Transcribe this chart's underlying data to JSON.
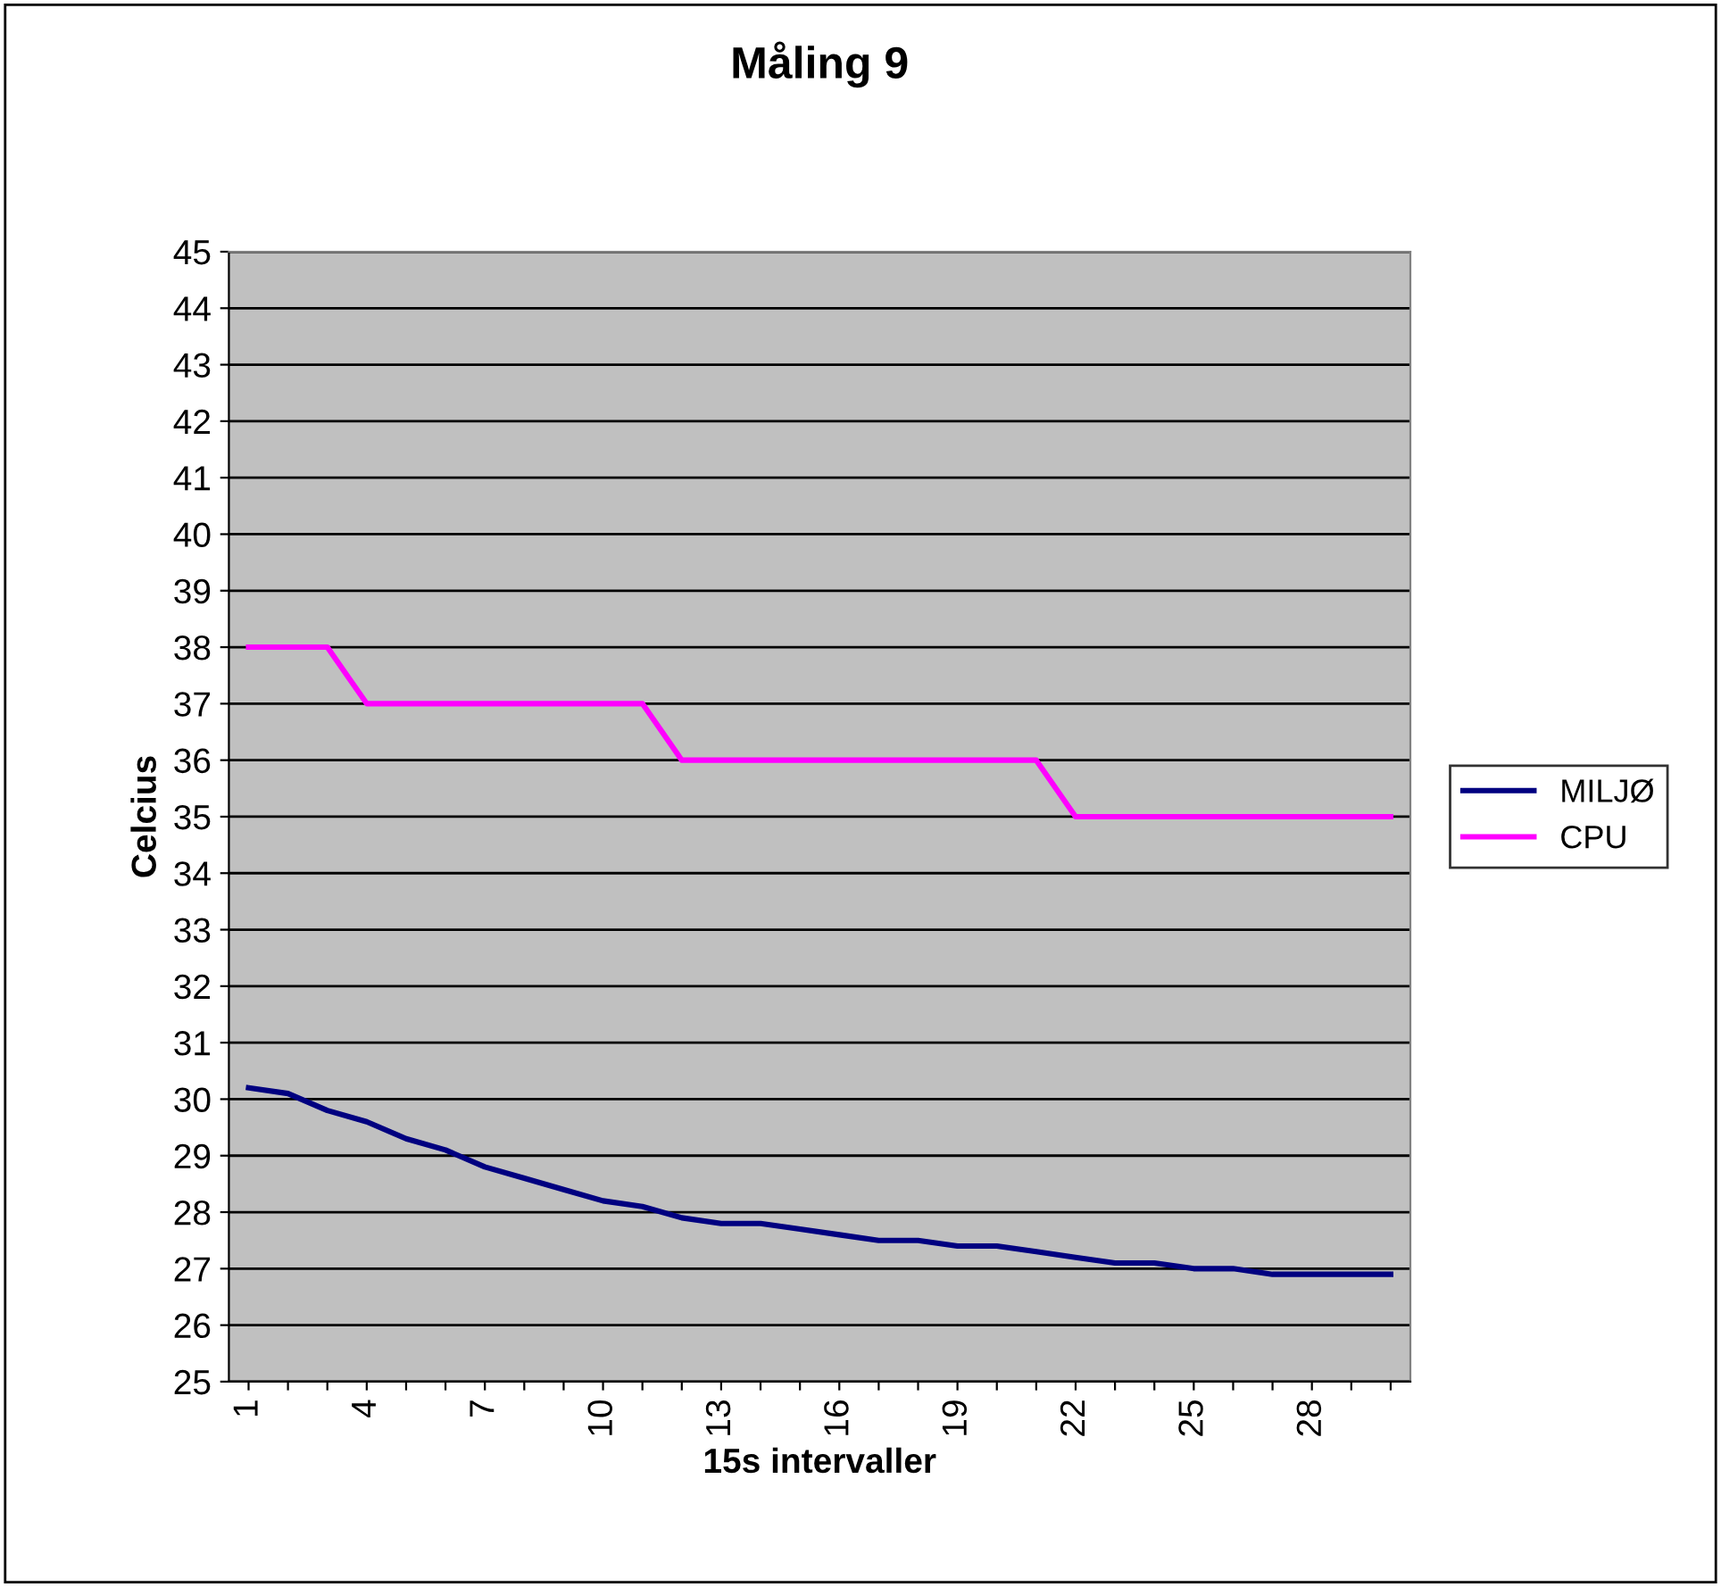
{
  "chart_data": {
    "type": "line",
    "title": "Måling 9",
    "xlabel": "15s intervaller",
    "ylabel": "Celcius",
    "categories": [
      "1",
      null,
      null,
      "4",
      null,
      null,
      "7",
      null,
      null,
      "10",
      null,
      null,
      "13",
      null,
      null,
      "16",
      null,
      null,
      "19",
      null,
      null,
      "22",
      null,
      null,
      "25",
      null,
      null,
      "28",
      null,
      null
    ],
    "series": [
      {
        "name": "MILJØ",
        "color": "#000080",
        "values": [
          30.2,
          30.1,
          29.8,
          29.6,
          29.3,
          29.1,
          28.8,
          28.6,
          28.4,
          28.2,
          28.1,
          27.9,
          27.8,
          27.8,
          27.7,
          27.6,
          27.5,
          27.5,
          27.4,
          27.4,
          27.3,
          27.2,
          27.1,
          27.1,
          27.0,
          27.0,
          26.9,
          26.9,
          26.9,
          26.9
        ]
      },
      {
        "name": "CPU",
        "color": "#ff00ff",
        "values": [
          38,
          38,
          38,
          37,
          37,
          37,
          37,
          37,
          37,
          37,
          37,
          36,
          36,
          36,
          36,
          36,
          36,
          36,
          36,
          36,
          36,
          35,
          35,
          35,
          35,
          35,
          35,
          35,
          35,
          35
        ]
      }
    ],
    "ylim": [
      25,
      45
    ],
    "yticks": [
      25,
      26,
      27,
      28,
      29,
      30,
      31,
      32,
      33,
      34,
      35,
      36,
      37,
      38,
      39,
      40,
      41,
      42,
      43,
      44,
      45
    ],
    "grid": "y",
    "legend": "right",
    "marker": "none",
    "line_style": "solid"
  }
}
